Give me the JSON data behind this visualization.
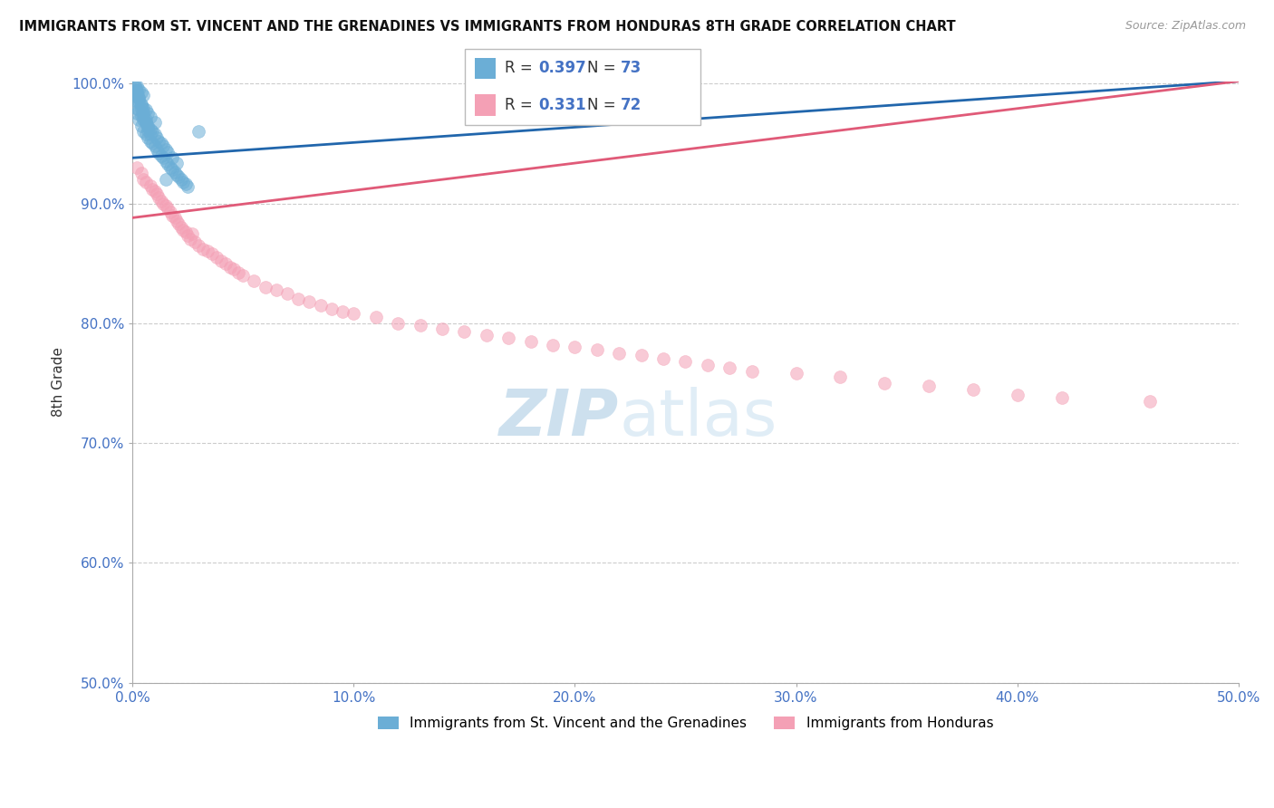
{
  "title": "IMMIGRANTS FROM ST. VINCENT AND THE GRENADINES VS IMMIGRANTS FROM HONDURAS 8TH GRADE CORRELATION CHART",
  "source": "Source: ZipAtlas.com",
  "ylabel": "8th Grade",
  "series1_label": "Immigrants from St. Vincent and the Grenadines",
  "series2_label": "Immigrants from Honduras",
  "series1_R": 0.397,
  "series1_N": 73,
  "series2_R": 0.331,
  "series2_N": 72,
  "series1_color": "#6baed6",
  "series2_color": "#f4a0b5",
  "trendline1_color": "#2166ac",
  "trendline2_color": "#e05a78",
  "xlim": [
    0.0,
    0.5
  ],
  "ylim": [
    0.5,
    1.002
  ],
  "xticks": [
    0.0,
    0.1,
    0.2,
    0.3,
    0.4,
    0.5
  ],
  "yticks": [
    0.5,
    0.6,
    0.7,
    0.8,
    0.9,
    1.0
  ],
  "background_color": "#ffffff",
  "watermark_zip": "ZIP",
  "watermark_atlas": "atlas",
  "trendline1_x0": 0.0,
  "trendline1_y0": 0.938,
  "trendline1_x1": 0.5,
  "trendline1_y1": 1.002,
  "trendline2_x0": 0.0,
  "trendline2_y0": 0.888,
  "trendline2_x1": 0.5,
  "trendline2_y1": 1.002,
  "series1_x": [
    0.001,
    0.001,
    0.001,
    0.002,
    0.002,
    0.002,
    0.002,
    0.003,
    0.003,
    0.003,
    0.003,
    0.004,
    0.004,
    0.004,
    0.004,
    0.005,
    0.005,
    0.005,
    0.005,
    0.006,
    0.006,
    0.006,
    0.007,
    0.007,
    0.007,
    0.008,
    0.008,
    0.008,
    0.009,
    0.009,
    0.01,
    0.01,
    0.01,
    0.011,
    0.011,
    0.012,
    0.012,
    0.013,
    0.013,
    0.014,
    0.014,
    0.015,
    0.015,
    0.016,
    0.016,
    0.017,
    0.018,
    0.018,
    0.019,
    0.02,
    0.02,
    0.021,
    0.022,
    0.023,
    0.024,
    0.025,
    0.001,
    0.001,
    0.002,
    0.002,
    0.003,
    0.003,
    0.004,
    0.004,
    0.005,
    0.005,
    0.006,
    0.006,
    0.007,
    0.007,
    0.008,
    0.015,
    0.03
  ],
  "series1_y": [
    0.98,
    0.99,
    0.995,
    0.975,
    0.985,
    0.992,
    0.998,
    0.97,
    0.978,
    0.988,
    0.995,
    0.965,
    0.973,
    0.983,
    0.993,
    0.96,
    0.97,
    0.98,
    0.99,
    0.958,
    0.968,
    0.978,
    0.955,
    0.965,
    0.975,
    0.952,
    0.962,
    0.972,
    0.95,
    0.96,
    0.948,
    0.958,
    0.968,
    0.945,
    0.955,
    0.942,
    0.952,
    0.94,
    0.95,
    0.938,
    0.948,
    0.935,
    0.945,
    0.933,
    0.943,
    0.93,
    0.928,
    0.938,
    0.926,
    0.924,
    0.934,
    0.922,
    0.92,
    0.918,
    0.916,
    0.914,
    0.999,
    0.997,
    0.994,
    0.991,
    0.988,
    0.985,
    0.982,
    0.979,
    0.976,
    0.973,
    0.97,
    0.967,
    0.964,
    0.961,
    0.958,
    0.92,
    0.96
  ],
  "series2_x": [
    0.002,
    0.004,
    0.005,
    0.006,
    0.008,
    0.009,
    0.01,
    0.011,
    0.012,
    0.013,
    0.014,
    0.015,
    0.016,
    0.017,
    0.018,
    0.019,
    0.02,
    0.021,
    0.022,
    0.023,
    0.024,
    0.025,
    0.026,
    0.027,
    0.028,
    0.03,
    0.032,
    0.034,
    0.036,
    0.038,
    0.04,
    0.042,
    0.044,
    0.046,
    0.048,
    0.05,
    0.055,
    0.06,
    0.065,
    0.07,
    0.075,
    0.08,
    0.085,
    0.09,
    0.095,
    0.1,
    0.11,
    0.12,
    0.13,
    0.14,
    0.15,
    0.16,
    0.17,
    0.18,
    0.19,
    0.2,
    0.21,
    0.22,
    0.23,
    0.24,
    0.25,
    0.26,
    0.27,
    0.28,
    0.3,
    0.32,
    0.34,
    0.36,
    0.38,
    0.4,
    0.42,
    0.46
  ],
  "series2_y": [
    0.93,
    0.925,
    0.92,
    0.918,
    0.915,
    0.912,
    0.91,
    0.908,
    0.905,
    0.902,
    0.9,
    0.898,
    0.896,
    0.893,
    0.89,
    0.888,
    0.885,
    0.883,
    0.88,
    0.878,
    0.876,
    0.873,
    0.87,
    0.875,
    0.868,
    0.865,
    0.862,
    0.86,
    0.858,
    0.855,
    0.852,
    0.85,
    0.847,
    0.845,
    0.842,
    0.84,
    0.835,
    0.83,
    0.828,
    0.825,
    0.82,
    0.818,
    0.815,
    0.812,
    0.81,
    0.808,
    0.805,
    0.8,
    0.798,
    0.795,
    0.793,
    0.79,
    0.788,
    0.785,
    0.782,
    0.78,
    0.778,
    0.775,
    0.773,
    0.77,
    0.768,
    0.765,
    0.763,
    0.76,
    0.758,
    0.755,
    0.75,
    0.748,
    0.745,
    0.74,
    0.738,
    0.735
  ]
}
